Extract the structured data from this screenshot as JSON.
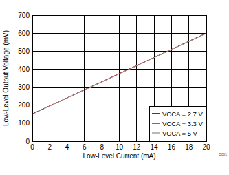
{
  "chart_data": {
    "type": "line",
    "x_label": "Low-Level Current (mA)",
    "y_label": "Low-Level Output Voltage (mV)",
    "annotation": "D001",
    "x": [
      0,
      2,
      4,
      6,
      8,
      10,
      12,
      14,
      16,
      18,
      20
    ],
    "series": [
      {
        "name": "VCCA = 2.7 V",
        "color": "#000000",
        "values": [
          152,
          196,
          241,
          286,
          330,
          375,
          420,
          465,
          510,
          555,
          600
        ]
      },
      {
        "name": "VCCA = 3.3 V",
        "color": "#e00000",
        "values": [
          151,
          196,
          240,
          285,
          330,
          375,
          420,
          464,
          509,
          554,
          599
        ]
      },
      {
        "name": "VCCA = 5 V",
        "color": "#a0a0a0",
        "values": [
          150,
          195,
          240,
          285,
          329,
          374,
          419,
          464,
          509,
          554,
          598
        ]
      }
    ],
    "xlim": [
      0,
      20
    ],
    "xticks": [
      0,
      2,
      4,
      6,
      8,
      10,
      12,
      14,
      16,
      18,
      20
    ],
    "ylim": [
      0,
      700
    ],
    "yticks": [
      0,
      100,
      200,
      300,
      400,
      500,
      600,
      700
    ],
    "grid": true,
    "legend": "lower right"
  }
}
